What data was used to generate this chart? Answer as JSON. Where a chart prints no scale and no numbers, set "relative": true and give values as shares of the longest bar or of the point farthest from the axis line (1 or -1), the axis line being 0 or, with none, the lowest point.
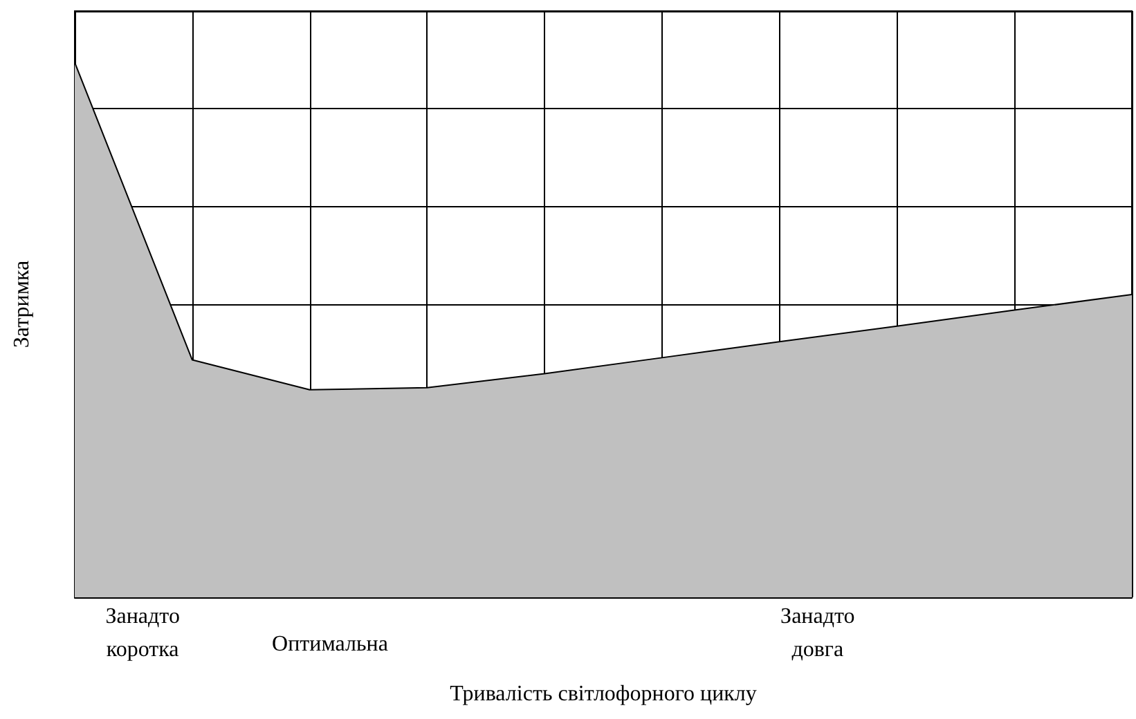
{
  "chart_data": {
    "type": "area",
    "relative": true,
    "ylabel": "Затримка",
    "xlabel": "Тривалість світлофорного циклу",
    "categories": [
      null,
      null,
      null,
      null,
      null,
      null,
      null,
      null,
      null,
      null
    ],
    "series": [
      {
        "color": "#c0c0c0",
        "values": [
          1,
          0.444,
          0.388,
          0.392,
          0.418,
          0.448,
          0.478,
          0.507,
          0.537,
          0.566
        ]
      }
    ],
    "annotations": [
      "Занадто\nкоротка",
      "Оптимальна",
      "Занадто\nдовга"
    ],
    "grid": true,
    "marker": "none",
    "line_style": "solid"
  }
}
